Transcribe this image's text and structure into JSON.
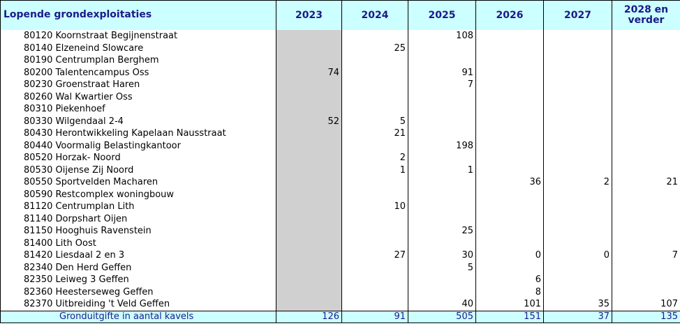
{
  "table": {
    "title": "Lopende grondexploitaties",
    "years": [
      "2023",
      "2024",
      "2025",
      "2026",
      "2027",
      "2028 en verder"
    ],
    "rows": [
      {
        "name": "80120 Koornstraat Begijnenstraat",
        "values": [
          "",
          "",
          "108",
          "",
          "",
          ""
        ]
      },
      {
        "name": "80140 Elzeneind Slowcare",
        "values": [
          "",
          "25",
          "",
          "",
          "",
          ""
        ]
      },
      {
        "name": "80190 Centrumplan Berghem",
        "values": [
          "",
          "",
          "",
          "",
          "",
          ""
        ]
      },
      {
        "name": "80200 Talentencampus Oss",
        "values": [
          "74",
          "",
          "91",
          "",
          "",
          ""
        ]
      },
      {
        "name": "80230 Groenstraat Haren",
        "values": [
          "",
          "",
          "7",
          "",
          "",
          ""
        ]
      },
      {
        "name": "80260 Wal Kwartier Oss",
        "values": [
          "",
          "",
          "",
          "",
          "",
          ""
        ]
      },
      {
        "name": "80310 Piekenhoef",
        "values": [
          "",
          "",
          "",
          "",
          "",
          ""
        ]
      },
      {
        "name": "80330 Wilgendaal 2-4",
        "values": [
          "52",
          "5",
          "",
          "",
          "",
          ""
        ]
      },
      {
        "name": "80430 Herontwikkeling Kapelaan Nausstraat",
        "values": [
          "",
          "21",
          "",
          "",
          "",
          ""
        ]
      },
      {
        "name": "80440 Voormalig Belastingkantoor",
        "values": [
          "",
          "",
          "198",
          "",
          "",
          ""
        ]
      },
      {
        "name": "80520 Horzak- Noord",
        "values": [
          "",
          "2",
          "",
          "",
          "",
          ""
        ]
      },
      {
        "name": "80530 Oijense Zij Noord",
        "values": [
          "",
          "1",
          "1",
          "",
          "",
          ""
        ]
      },
      {
        "name": "80550 Sportvelden Macharen",
        "values": [
          "",
          "",
          "",
          "36",
          "2",
          "21"
        ]
      },
      {
        "name": "80590 Restcomplex woningbouw",
        "values": [
          "",
          "",
          "",
          "",
          "",
          ""
        ]
      },
      {
        "name": "81120 Centrumplan Lith",
        "values": [
          "",
          "10",
          "",
          "",
          "",
          ""
        ]
      },
      {
        "name": "81140 Dorpshart Oijen",
        "values": [
          "",
          "",
          "",
          "",
          "",
          ""
        ]
      },
      {
        "name": "81150 Hooghuis Ravenstein",
        "values": [
          "",
          "",
          "25",
          "",
          "",
          ""
        ]
      },
      {
        "name": "81400 Lith Oost",
        "values": [
          "",
          "",
          "",
          "",
          "",
          ""
        ]
      },
      {
        "name": "81420 Liesdaal 2 en 3",
        "values": [
          "",
          "27",
          "30",
          "0",
          "0",
          "7"
        ]
      },
      {
        "name": "82340 Den Herd Geffen",
        "values": [
          "",
          "",
          "5",
          "",
          "",
          ""
        ]
      },
      {
        "name": "82350 Leiweg 3 Geffen",
        "values": [
          "",
          "",
          "",
          "6",
          "",
          ""
        ]
      },
      {
        "name": "82360 Heesterseweg Geffen",
        "values": [
          "",
          "",
          "",
          "8",
          "",
          ""
        ]
      },
      {
        "name": "82370 Uitbreiding 't Veld Geffen",
        "values": [
          "",
          "",
          "40",
          "101",
          "35",
          "107"
        ]
      }
    ],
    "total": {
      "name": "Gronduitgifte in aantal kavels",
      "values": [
        "126",
        "91",
        "505",
        "151",
        "37",
        "135"
      ]
    }
  },
  "colors": {
    "header_bg": "#ccffff",
    "header_text": "#1a1a8a",
    "shade_2023": "#d0d0d0"
  }
}
